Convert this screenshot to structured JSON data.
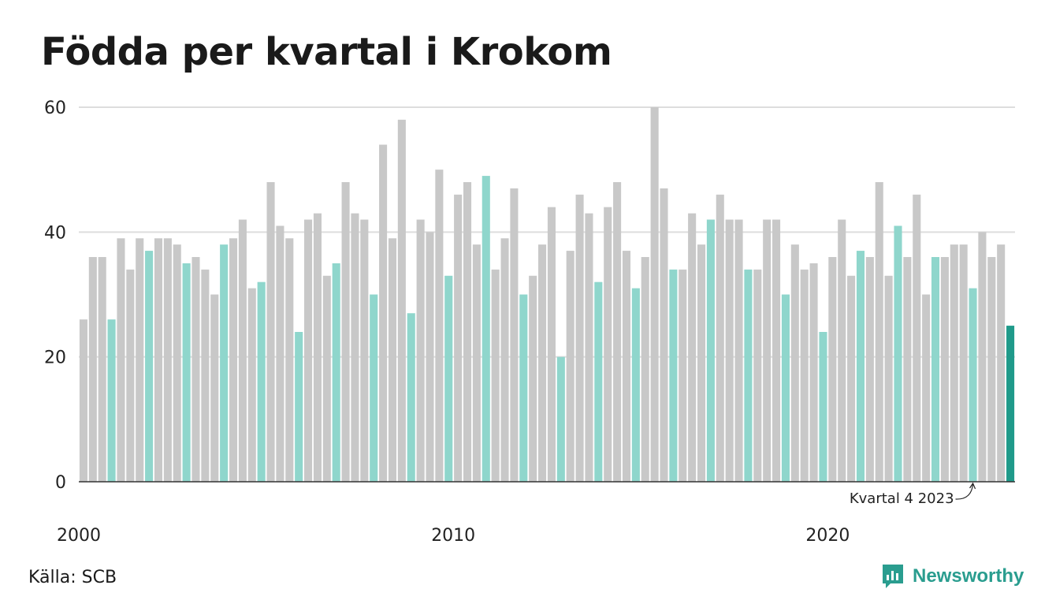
{
  "title": "Födda per kvartal i Krokom",
  "source": "Källa: SCB",
  "brand": "Newsworthy",
  "colors": {
    "gray": "#c8c8c8",
    "highlight": "#8fd6cc",
    "latest": "#1f9a8a",
    "grid": "#dddddd",
    "axis": "#333333",
    "brand": "#2a9d8f"
  },
  "chart_data": {
    "type": "bar",
    "ylim": [
      0,
      60
    ],
    "yticks": [
      0,
      20,
      40,
      60
    ],
    "xticks": [
      "2000",
      "2010",
      "2020"
    ],
    "grid": true,
    "annotation": "Kvartal 4 2023",
    "highlight_rule": "Kvartal 4 each year; latest quarter darker",
    "categories": [
      "2000 Q1",
      "2000 Q2",
      "2000 Q3",
      "2000 Q4",
      "2001 Q1",
      "2001 Q2",
      "2001 Q3",
      "2001 Q4",
      "2002 Q1",
      "2002 Q2",
      "2002 Q3",
      "2002 Q4",
      "2003 Q1",
      "2003 Q2",
      "2003 Q3",
      "2003 Q4",
      "2004 Q1",
      "2004 Q2",
      "2004 Q3",
      "2004 Q4",
      "2005 Q1",
      "2005 Q2",
      "2005 Q3",
      "2005 Q4",
      "2006 Q1",
      "2006 Q2",
      "2006 Q3",
      "2006 Q4",
      "2007 Q1",
      "2007 Q2",
      "2007 Q3",
      "2007 Q4",
      "2008 Q1",
      "2008 Q2",
      "2008 Q3",
      "2008 Q4",
      "2009 Q1",
      "2009 Q2",
      "2009 Q3",
      "2009 Q4",
      "2010 Q1",
      "2010 Q2",
      "2010 Q3",
      "2010 Q4",
      "2011 Q1",
      "2011 Q2",
      "2011 Q3",
      "2011 Q4",
      "2012 Q1",
      "2012 Q2",
      "2012 Q3",
      "2012 Q4",
      "2013 Q1",
      "2013 Q2",
      "2013 Q3",
      "2013 Q4",
      "2014 Q1",
      "2014 Q2",
      "2014 Q3",
      "2014 Q4",
      "2015 Q1",
      "2015 Q2",
      "2015 Q3",
      "2015 Q4",
      "2016 Q1",
      "2016 Q2",
      "2016 Q3",
      "2016 Q4",
      "2017 Q1",
      "2017 Q2",
      "2017 Q3",
      "2017 Q4",
      "2018 Q1",
      "2018 Q2",
      "2018 Q3",
      "2018 Q4",
      "2019 Q1",
      "2019 Q2",
      "2019 Q3",
      "2019 Q4",
      "2020 Q1",
      "2020 Q2",
      "2020 Q3",
      "2020 Q4",
      "2021 Q1",
      "2021 Q2",
      "2021 Q3",
      "2021 Q4",
      "2022 Q1",
      "2022 Q2",
      "2022 Q3",
      "2022 Q4",
      "2023 Q1",
      "2023 Q2",
      "2023 Q3",
      "2023 Q4",
      "2024 Q1",
      "2024 Q2",
      "2024 Q3",
      "2024 Q4"
    ],
    "values": [
      26,
      36,
      36,
      26,
      39,
      34,
      39,
      37,
      39,
      39,
      38,
      35,
      36,
      34,
      30,
      38,
      39,
      42,
      31,
      32,
      48,
      41,
      39,
      24,
      42,
      43,
      33,
      35,
      48,
      43,
      42,
      30,
      54,
      39,
      58,
      27,
      42,
      40,
      50,
      33,
      46,
      48,
      38,
      49,
      34,
      39,
      47,
      30,
      33,
      38,
      44,
      20,
      37,
      46,
      43,
      32,
      44,
      48,
      37,
      31,
      36,
      60,
      47,
      34,
      34,
      43,
      38,
      42,
      46,
      42,
      42,
      34,
      34,
      42,
      42,
      30,
      38,
      34,
      35,
      24,
      36,
      42,
      33,
      37,
      36,
      48,
      33,
      41,
      36,
      46,
      30,
      36,
      36,
      38,
      38,
      31,
      40,
      36,
      38,
      25
    ],
    "highlighted_indices": [
      3,
      7,
      11,
      15,
      19,
      23,
      27,
      31,
      35,
      39,
      43,
      47,
      51,
      55,
      59,
      63,
      67,
      71,
      75,
      79,
      83,
      87,
      91,
      95
    ],
    "latest_index": 99,
    "annotated_index": 95
  }
}
